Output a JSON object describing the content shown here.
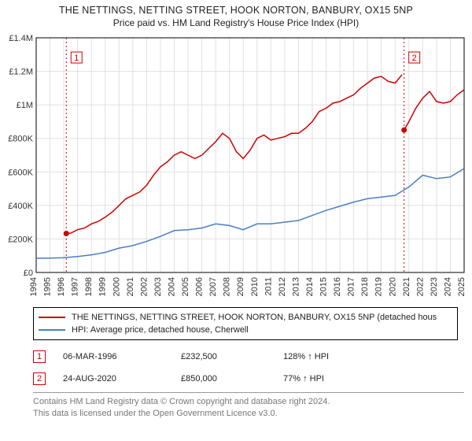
{
  "title_line1": "THE NETTINGS, NETTING STREET, HOOK NORTON, BANBURY, OX15 5NP",
  "title_line2": "Price paid vs. HM Land Registry's House Price Index (HPI)",
  "chart": {
    "type": "line",
    "background_color": "#ffffff",
    "grid_color": "#e0e0e0",
    "axis_color": "#000000",
    "x": {
      "years": [
        1994,
        1995,
        1996,
        1997,
        1998,
        1999,
        2000,
        2001,
        2002,
        2003,
        2004,
        2005,
        2006,
        2007,
        2008,
        2009,
        2010,
        2011,
        2012,
        2013,
        2014,
        2015,
        2016,
        2017,
        2018,
        2019,
        2020,
        2021,
        2022,
        2023,
        2024,
        2025
      ],
      "label_fontsize": 11
    },
    "y": {
      "ticks": [
        0,
        200000,
        400000,
        600000,
        800000,
        1000000,
        1200000,
        1400000
      ],
      "tick_labels": [
        "£0",
        "£200K",
        "£400K",
        "£600K",
        "£800K",
        "£1M",
        "£1.2M",
        "£1.4M"
      ],
      "label_fontsize": 11,
      "ylim": [
        0,
        1400000
      ]
    },
    "series": [
      {
        "name": "property_price",
        "color": "#cc0000",
        "width": 1.5,
        "legend_label": "THE NETTINGS, NETTING STREET, HOOK NORTON, BANBURY, OX15 5NP (detached hous",
        "data": [
          [
            1996.18,
            232500
          ],
          [
            1996.5,
            235000
          ],
          [
            1997,
            255000
          ],
          [
            1997.5,
            265000
          ],
          [
            1998,
            290000
          ],
          [
            1998.5,
            305000
          ],
          [
            1999,
            330000
          ],
          [
            1999.5,
            360000
          ],
          [
            2000,
            400000
          ],
          [
            2000.5,
            440000
          ],
          [
            2001,
            460000
          ],
          [
            2001.5,
            480000
          ],
          [
            2002,
            520000
          ],
          [
            2002.5,
            580000
          ],
          [
            2003,
            630000
          ],
          [
            2003.5,
            660000
          ],
          [
            2004,
            700000
          ],
          [
            2004.5,
            720000
          ],
          [
            2005,
            700000
          ],
          [
            2005.5,
            680000
          ],
          [
            2006,
            700000
          ],
          [
            2006.5,
            740000
          ],
          [
            2007,
            780000
          ],
          [
            2007.5,
            830000
          ],
          [
            2008,
            800000
          ],
          [
            2008.5,
            720000
          ],
          [
            2009,
            680000
          ],
          [
            2009.5,
            730000
          ],
          [
            2010,
            800000
          ],
          [
            2010.5,
            820000
          ],
          [
            2011,
            790000
          ],
          [
            2011.5,
            800000
          ],
          [
            2012,
            810000
          ],
          [
            2012.5,
            830000
          ],
          [
            2013,
            830000
          ],
          [
            2013.5,
            860000
          ],
          [
            2014,
            900000
          ],
          [
            2014.5,
            960000
          ],
          [
            2015,
            980000
          ],
          [
            2015.5,
            1010000
          ],
          [
            2016,
            1020000
          ],
          [
            2016.5,
            1040000
          ],
          [
            2017,
            1060000
          ],
          [
            2017.5,
            1100000
          ],
          [
            2018,
            1130000
          ],
          [
            2018.5,
            1160000
          ],
          [
            2019,
            1170000
          ],
          [
            2019.5,
            1140000
          ],
          [
            2020,
            1130000
          ],
          [
            2020.5,
            1180000
          ]
        ]
      },
      {
        "name": "property_price_after",
        "color": "#cc0000",
        "width": 1.5,
        "data": [
          [
            2020.65,
            850000
          ],
          [
            2021,
            900000
          ],
          [
            2021.5,
            980000
          ],
          [
            2022,
            1040000
          ],
          [
            2022.5,
            1080000
          ],
          [
            2023,
            1020000
          ],
          [
            2023.5,
            1010000
          ],
          [
            2024,
            1020000
          ],
          [
            2024.5,
            1060000
          ],
          [
            2025,
            1090000
          ]
        ]
      },
      {
        "name": "hpi",
        "color": "#4a7ec8",
        "width": 1.5,
        "legend_label": "HPI: Average price, detached house, Cherwell",
        "data": [
          [
            1994,
            85000
          ],
          [
            1995,
            86000
          ],
          [
            1996,
            88000
          ],
          [
            1997,
            95000
          ],
          [
            1998,
            105000
          ],
          [
            1999,
            120000
          ],
          [
            2000,
            145000
          ],
          [
            2001,
            160000
          ],
          [
            2002,
            185000
          ],
          [
            2003,
            215000
          ],
          [
            2004,
            250000
          ],
          [
            2005,
            255000
          ],
          [
            2006,
            265000
          ],
          [
            2007,
            290000
          ],
          [
            2008,
            280000
          ],
          [
            2009,
            255000
          ],
          [
            2010,
            290000
          ],
          [
            2011,
            290000
          ],
          [
            2012,
            300000
          ],
          [
            2013,
            310000
          ],
          [
            2014,
            340000
          ],
          [
            2015,
            370000
          ],
          [
            2016,
            395000
          ],
          [
            2017,
            420000
          ],
          [
            2018,
            440000
          ],
          [
            2019,
            450000
          ],
          [
            2020,
            460000
          ],
          [
            2021,
            510000
          ],
          [
            2022,
            580000
          ],
          [
            2023,
            560000
          ],
          [
            2024,
            570000
          ],
          [
            2025,
            620000
          ]
        ]
      }
    ],
    "sale_markers": [
      {
        "n": "1",
        "year": 1996.18,
        "price": 232500
      },
      {
        "n": "2",
        "year": 2020.65,
        "price": 850000
      }
    ],
    "marker_color": "#cc0000",
    "marker_line_color": "#cc0000",
    "marker_box_border": "#cc0000",
    "marker_box_fill": "#ffffff"
  },
  "legend": {
    "rows": [
      {
        "color": "#cc0000",
        "label": "THE NETTINGS, NETTING STREET, HOOK NORTON, BANBURY, OX15 5NP (detached hous"
      },
      {
        "color": "#4a7ec8",
        "label": "HPI: Average price, detached house, Cherwell"
      }
    ]
  },
  "events": [
    {
      "n": "1",
      "date": "06-MAR-1996",
      "price": "£232,500",
      "hpi": "128% ↑ HPI"
    },
    {
      "n": "2",
      "date": "24-AUG-2020",
      "price": "£850,000",
      "hpi": "77% ↑ HPI"
    }
  ],
  "license_line1": "Contains HM Land Registry data © Crown copyright and database right 2024.",
  "license_line2": "This data is licensed under the Open Government Licence v3.0."
}
